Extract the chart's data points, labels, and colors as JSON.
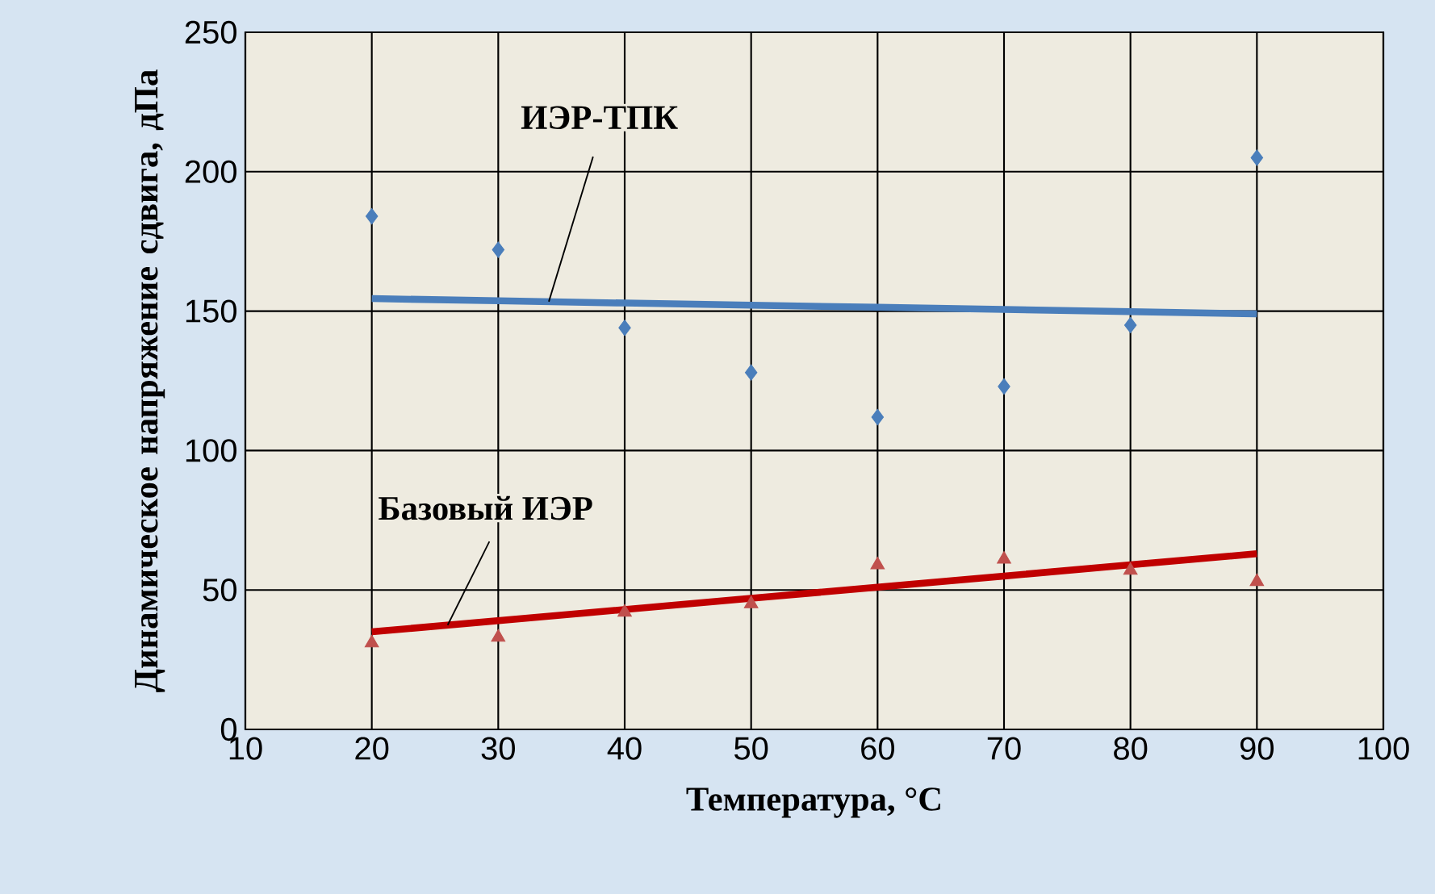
{
  "chart_data": {
    "type": "scatter",
    "xlabel": "Температура, °C",
    "ylabel": "Динамическое напряжение сдвига, дПа",
    "x": [
      20,
      30,
      40,
      50,
      60,
      70,
      80,
      90
    ],
    "series": [
      {
        "color": "#4a7ebb",
        "marker": "diamond",
        "values": [
          184,
          172,
          144,
          128,
          112,
          123,
          145,
          205
        ]
      },
      {
        "color": "#c0504d",
        "marker": "triangle",
        "values": [
          31,
          33,
          42,
          45,
          59,
          61,
          57,
          53
        ]
      },
      {
        "type": "line",
        "name": "ИЭР-ТПК",
        "color": "#4a7ebb",
        "values": [
          154.5,
          153.7,
          152.9,
          152.1,
          151.4,
          150.6,
          149.8,
          149
        ]
      },
      {
        "type": "line",
        "name": "Базовый ИЭР",
        "color": "#c00000",
        "values": [
          35,
          39,
          43,
          47,
          51,
          55,
          59,
          63
        ]
      }
    ],
    "xlim": [
      10,
      100
    ],
    "ylim": [
      0,
      250
    ],
    "xticks": [
      10,
      20,
      30,
      40,
      50,
      60,
      70,
      80,
      90,
      100
    ],
    "yticks": [
      0,
      50,
      100,
      150,
      200,
      250
    ],
    "grid": true
  }
}
